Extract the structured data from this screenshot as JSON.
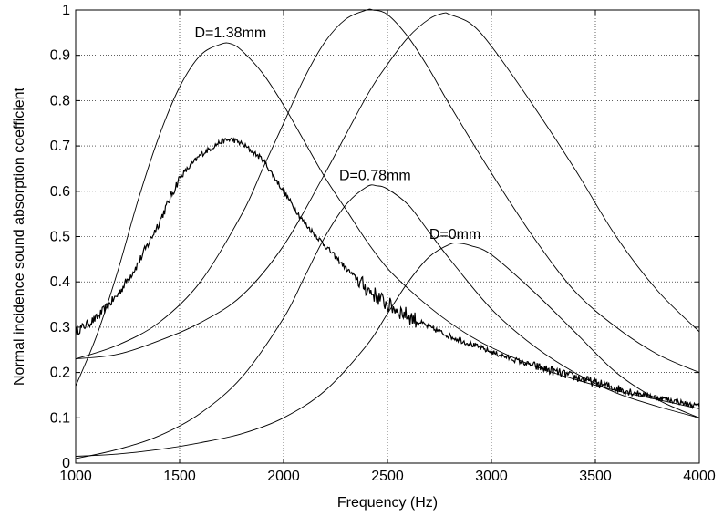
{
  "chart_data": {
    "type": "line",
    "xlabel": "Frequency (Hz)",
    "ylabel": "Normal incidence sound absorption coefficient",
    "xlim": [
      1000,
      4000
    ],
    "ylim": [
      0,
      1
    ],
    "xticks": [
      1000,
      1500,
      2000,
      2500,
      3000,
      3500,
      4000
    ],
    "yticks": [
      0,
      0.1,
      0.2,
      0.3,
      0.4,
      0.5,
      0.6,
      0.7,
      0.8,
      0.9,
      1
    ],
    "xtick_labels": [
      "1000",
      "1500",
      "2000",
      "2500",
      "3000",
      "3500",
      "4000"
    ],
    "ytick_labels": [
      "0",
      "0.1",
      "0.2",
      "0.3",
      "0.4",
      "0.5",
      "0.6",
      "0.7",
      "0.8",
      "0.9",
      "1"
    ],
    "grid": "dotted",
    "line_color": "#000000",
    "annotations": [
      {
        "text": "D=1.38mm",
        "x": 1745,
        "y": 0.93
      },
      {
        "text": "D=0.78mm",
        "x": 2440,
        "y": 0.615
      },
      {
        "text": "D=0mm",
        "x": 2825,
        "y": 0.485
      }
    ],
    "series": [
      {
        "x": [
          1000,
          1100,
          1200,
          1300,
          1400,
          1500,
          1600,
          1700,
          1750,
          1800,
          1900,
          2000,
          2100,
          2200,
          2300,
          2400,
          2500,
          2600,
          2700,
          2800,
          2900,
          3000,
          3200,
          3400,
          3600,
          3800,
          4000
        ],
        "y": [
          0.17,
          0.28,
          0.42,
          0.58,
          0.72,
          0.83,
          0.9,
          0.925,
          0.925,
          0.91,
          0.86,
          0.79,
          0.71,
          0.63,
          0.56,
          0.49,
          0.43,
          0.385,
          0.345,
          0.31,
          0.28,
          0.255,
          0.215,
          0.185,
          0.16,
          0.14,
          0.12
        ]
      },
      {
        "x": [
          1000,
          1200,
          1400,
          1600,
          1800,
          2000,
          2100,
          2200,
          2300,
          2400,
          2450,
          2500,
          2600,
          2700,
          2800,
          3000,
          3200,
          3400,
          3600,
          3800,
          4000
        ],
        "y": [
          0.01,
          0.03,
          0.06,
          0.11,
          0.19,
          0.32,
          0.41,
          0.5,
          0.57,
          0.61,
          0.612,
          0.605,
          0.57,
          0.51,
          0.45,
          0.34,
          0.26,
          0.2,
          0.155,
          0.125,
          0.1
        ]
      },
      {
        "x": [
          1000,
          1200,
          1400,
          1600,
          1800,
          2000,
          2200,
          2400,
          2500,
          2600,
          2700,
          2800,
          2850,
          2900,
          3000,
          3200,
          3400,
          3600,
          3800,
          4000
        ],
        "y": [
          0.015,
          0.02,
          0.03,
          0.045,
          0.065,
          0.1,
          0.16,
          0.26,
          0.33,
          0.4,
          0.455,
          0.483,
          0.485,
          0.48,
          0.46,
          0.38,
          0.29,
          0.2,
          0.14,
          0.1
        ]
      },
      {
        "x": [
          1000,
          1200,
          1400,
          1600,
          1800,
          1900,
          2000,
          2100,
          2200,
          2300,
          2400,
          2430,
          2500,
          2600,
          2700,
          2800,
          3000,
          3200,
          3400,
          3600,
          3800,
          4000
        ],
        "y": [
          0.23,
          0.26,
          0.31,
          0.4,
          0.55,
          0.65,
          0.75,
          0.85,
          0.93,
          0.98,
          1.0,
          1.0,
          0.99,
          0.94,
          0.87,
          0.79,
          0.64,
          0.5,
          0.38,
          0.3,
          0.24,
          0.2
        ]
      },
      {
        "x": [
          1000,
          1200,
          1400,
          1600,
          1800,
          2000,
          2200,
          2400,
          2500,
          2600,
          2700,
          2770,
          2800,
          2900,
          3000,
          3200,
          3400,
          3600,
          3800,
          4000
        ],
        "y": [
          0.23,
          0.24,
          0.27,
          0.31,
          0.37,
          0.48,
          0.64,
          0.81,
          0.88,
          0.94,
          0.98,
          0.993,
          0.99,
          0.97,
          0.92,
          0.79,
          0.65,
          0.5,
          0.38,
          0.29
        ]
      },
      {
        "x": [
          1000,
          1100,
          1200,
          1300,
          1400,
          1500,
          1600,
          1700,
          1750,
          1800,
          1900,
          2000,
          2100,
          2200,
          2300,
          2400,
          2500,
          2600,
          2700,
          2800,
          3000,
          3200,
          3400,
          3600,
          3800,
          4000
        ],
        "y": [
          0.29,
          0.32,
          0.37,
          0.44,
          0.53,
          0.63,
          0.68,
          0.71,
          0.715,
          0.705,
          0.67,
          0.6,
          0.53,
          0.48,
          0.43,
          0.385,
          0.35,
          0.325,
          0.3,
          0.28,
          0.245,
          0.215,
          0.19,
          0.165,
          0.145,
          0.125
        ],
        "noisy": true
      }
    ]
  }
}
